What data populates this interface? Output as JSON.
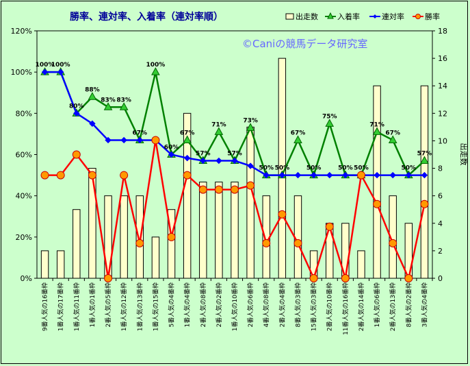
{
  "chart_data": {
    "type": "bar+line",
    "title": "勝率、連対率、入着率（連対率順）",
    "watermark": "©Caniの競馬データ研究室",
    "y2label": "出走数",
    "ylim_left": [
      0,
      120
    ],
    "ylim_right": [
      0,
      18
    ],
    "left_ticks": [
      "0%",
      "20%",
      "40%",
      "60%",
      "80%",
      "100%",
      "120%"
    ],
    "right_ticks": [
      "0",
      "2",
      "4",
      "6",
      "8",
      "10",
      "12",
      "14",
      "16",
      "18"
    ],
    "categories": [
      "9番人気の16番枠",
      "1番人気の17番枠",
      "1番人気の11番枠",
      "1番人気の1番枠",
      "2番人気の5番枠",
      "1番人気の12番枠",
      "1番人気の13番枠",
      "1番人気の15番枠",
      "5番人気の4番枠",
      "1番人気の4番枠",
      "2番人気の8番枠",
      "2番人気の2番枠",
      "1番人気の10番枠",
      "2番人気の6番枠",
      "4番人気の8番枠",
      "2番人気の4番枠",
      "8番人気の3番枠",
      "15番人気の3番枠",
      "2番人気の10番枠",
      "11番人気の16番枠",
      "2番人気の14番枠",
      "1番人気の6番枠",
      "2番人気の13番枠",
      "8番人気の2番枠",
      "3番人気の4番枠"
    ],
    "series": [
      {
        "name": "出走数",
        "type": "bar",
        "axis": "right",
        "color": "#ffffcc",
        "values": [
          2,
          2,
          5,
          8,
          6,
          6,
          6,
          3,
          5,
          12,
          7,
          7,
          7,
          11,
          6,
          16,
          6,
          2,
          4,
          4,
          2,
          14,
          6,
          4,
          14
        ]
      },
      {
        "name": "入着率",
        "type": "line",
        "axis": "left",
        "color": "#008000",
        "values": [
          100,
          100,
          80,
          88,
          83,
          83,
          67,
          100,
          60,
          67,
          57,
          71,
          57,
          73,
          50,
          50,
          67,
          50,
          75,
          50,
          50,
          71,
          67,
          50,
          57
        ],
        "labels": [
          "100%",
          "100%",
          "80%",
          "88%",
          "83%",
          "83%",
          "67%",
          "100%",
          "60%",
          "67%",
          "57%",
          "71%",
          "57%",
          "73%",
          "50%",
          "50%",
          "67%",
          "50%",
          "75%",
          "50%",
          "50%",
          "71%",
          "67%",
          "50%",
          "57%"
        ]
      },
      {
        "name": "連対率",
        "type": "line",
        "axis": "left",
        "color": "#0000ff",
        "values": [
          100,
          100,
          80,
          75,
          67,
          67,
          67,
          67,
          60,
          58.3,
          57,
          57,
          57,
          54.5,
          50,
          50,
          50,
          50,
          50,
          50,
          50,
          50,
          50,
          50,
          50
        ]
      },
      {
        "name": "勝率",
        "type": "line",
        "axis": "left",
        "color": "#ff0000",
        "values": [
          50,
          50,
          60,
          50,
          0,
          50,
          17,
          67,
          20,
          50,
          43,
          43,
          43,
          45,
          17,
          31,
          17,
          0,
          25,
          0,
          50,
          36,
          17,
          0,
          36
        ]
      }
    ],
    "legend_position": "top-right",
    "grid": false
  }
}
